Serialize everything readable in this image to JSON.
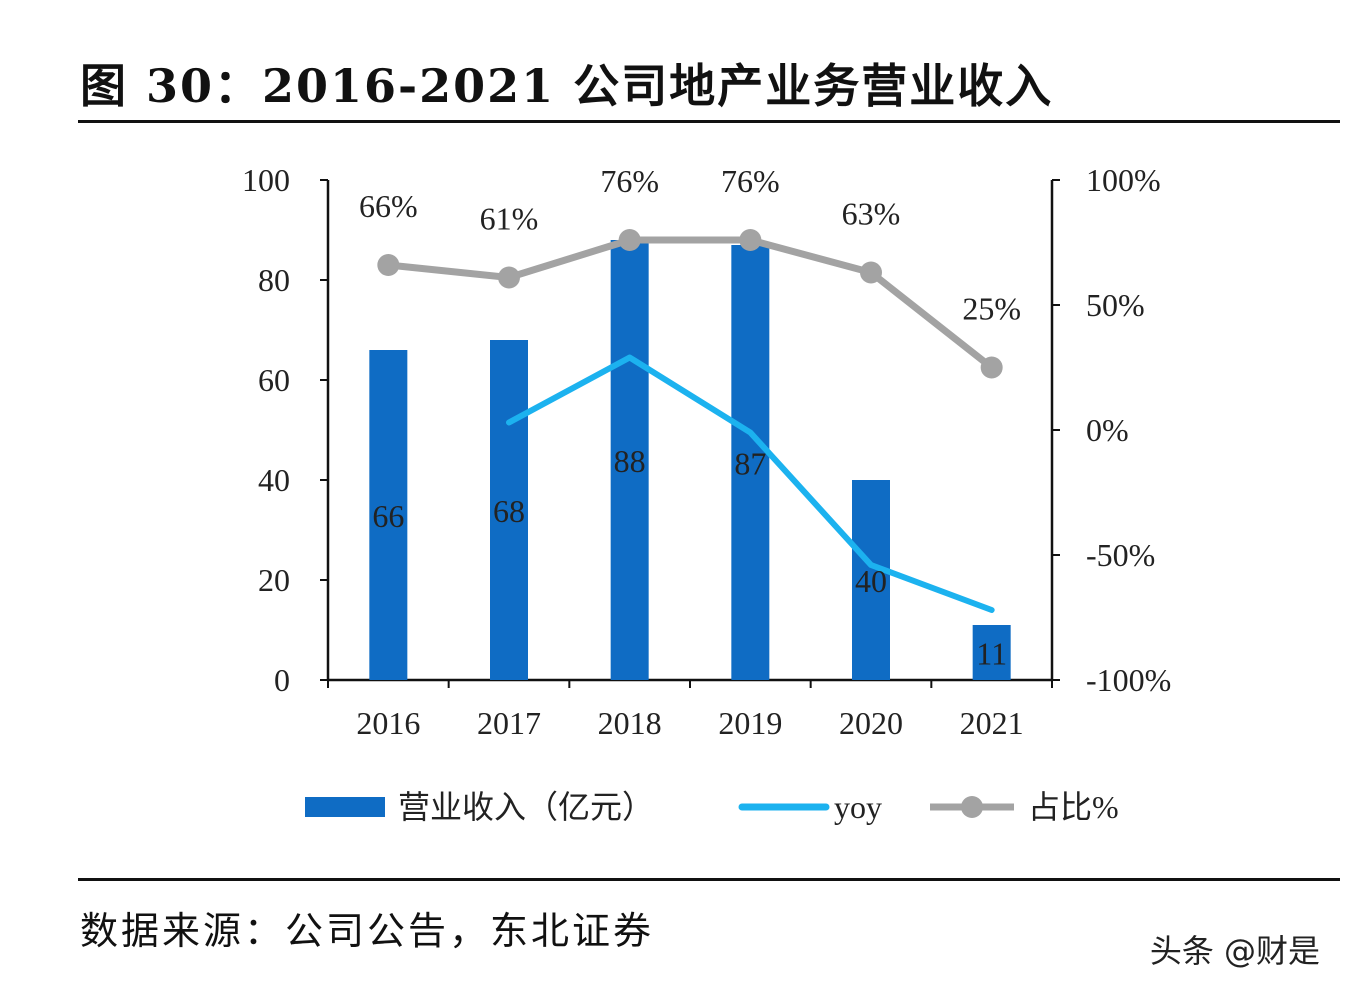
{
  "title": "图 30：2016-2021 公司地产业务营业收入",
  "source": "数据来源：公司公告，东北证券",
  "watermark": "头条 @财是",
  "chart_data": {
    "type": "bar+line",
    "title": "",
    "categories": [
      "2016",
      "2017",
      "2018",
      "2019",
      "2020",
      "2021"
    ],
    "left_axis": {
      "ylim": [
        0,
        100
      ],
      "ticks": [
        "0",
        "20",
        "40",
        "60",
        "80",
        "100"
      ]
    },
    "right_axis": {
      "ylim": [
        -100,
        100
      ],
      "ticks": [
        "-100%",
        "-50%",
        "0%",
        "50%",
        "100%"
      ]
    },
    "grid": false,
    "legend_position": "bottom",
    "series": [
      {
        "name": "营业收入（亿元）",
        "type": "bar",
        "axis": "left",
        "color": "#0f6cc4",
        "values": [
          66,
          68,
          88,
          87,
          40,
          11
        ],
        "labels": [
          "66",
          "68",
          "88",
          "87",
          "40",
          "11"
        ]
      },
      {
        "name": "yoy",
        "type": "line",
        "axis": "right",
        "color": "#1cb2ef",
        "values": [
          null,
          3,
          29,
          -1,
          -54,
          -72
        ]
      },
      {
        "name": "占比%",
        "type": "line",
        "axis": "right",
        "color": "#a3a3a3",
        "marker": "circle",
        "values": [
          66,
          61,
          76,
          76,
          63,
          25
        ],
        "labels": [
          "66%",
          "61%",
          "76%",
          "76%",
          "63%",
          "25%"
        ]
      }
    ]
  }
}
